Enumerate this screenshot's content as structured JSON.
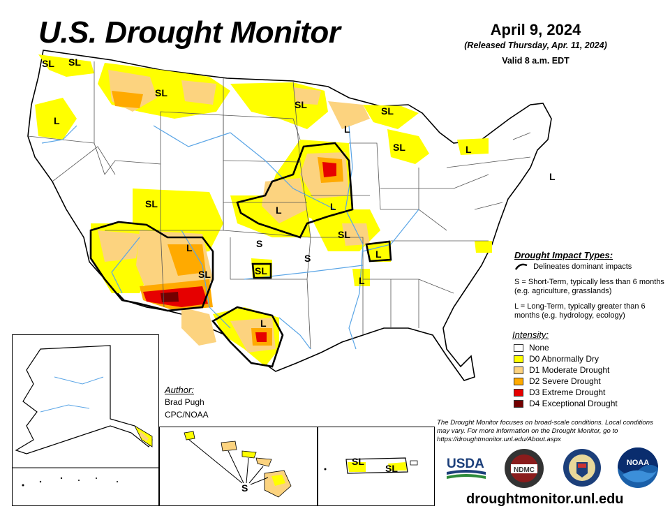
{
  "header": {
    "title": "U.S. Drought Monitor",
    "date": "April 9, 2024",
    "released": "(Released Thursday, Apr. 11, 2024)",
    "valid": "Valid 8 a.m. EDT"
  },
  "map_labels": {
    "sl_wa": "SL",
    "sl_wa2": "SL",
    "sl_mt": "SL",
    "sl_nd": "SL",
    "sl_mi_up": "SL",
    "sl_mi": "SL",
    "l_or": "L",
    "l_wi": "L",
    "l_ny": "L",
    "l_me": "L",
    "sl_ut": "SL",
    "l_co": "L",
    "l_ks": "L",
    "l_ia": "L",
    "sl_mo": "SL",
    "s_ok": "S",
    "s_ar": "S",
    "sl_ok": "SL",
    "l_ar": "L",
    "l_ky": "L",
    "l_nm": "L",
    "sl_nm": "SL",
    "l_tx": "L",
    "s_hi": "S",
    "sl_pr": "SL",
    "sl_pr2": "SL"
  },
  "impact_legend": {
    "title": "Drought Impact Types:",
    "line_desc": "Delineates dominant impacts",
    "s_desc": "S = Short-Term, typically less than 6 months (e.g. agriculture, grasslands)",
    "l_desc": "L = Long-Term, typically greater than 6 months (e.g. hydrology, ecology)"
  },
  "intensity_legend": {
    "title": "Intensity:",
    "items": [
      {
        "label": "None",
        "color": "#ffffff"
      },
      {
        "label": "D0 Abnormally Dry",
        "color": "#ffff00"
      },
      {
        "label": "D1 Moderate Drought",
        "color": "#fcd37f"
      },
      {
        "label": "D2 Severe Drought",
        "color": "#ffaa00"
      },
      {
        "label": "D3 Extreme Drought",
        "color": "#e60000"
      },
      {
        "label": "D4 Exceptional Drought",
        "color": "#730000"
      }
    ]
  },
  "author": {
    "title": "Author:",
    "name": "Brad Pugh",
    "org": "CPC/NOAA"
  },
  "note": "The Drought Monitor focuses on broad-scale conditions. Local conditions may vary. For more information on the Drought Monitor, go to https://droughtmonitor.unl.edu/About.aspx",
  "logos": {
    "usda": "USDA",
    "ndmc": "NDMC",
    "noaa": "NOAA"
  },
  "website": "droughtmonitor.unl.edu",
  "colors": {
    "d0": "#ffff00",
    "d1": "#fcd37f",
    "d2": "#ffaa00",
    "d3": "#e60000",
    "d4": "#730000",
    "water": "#5aa5e6"
  }
}
